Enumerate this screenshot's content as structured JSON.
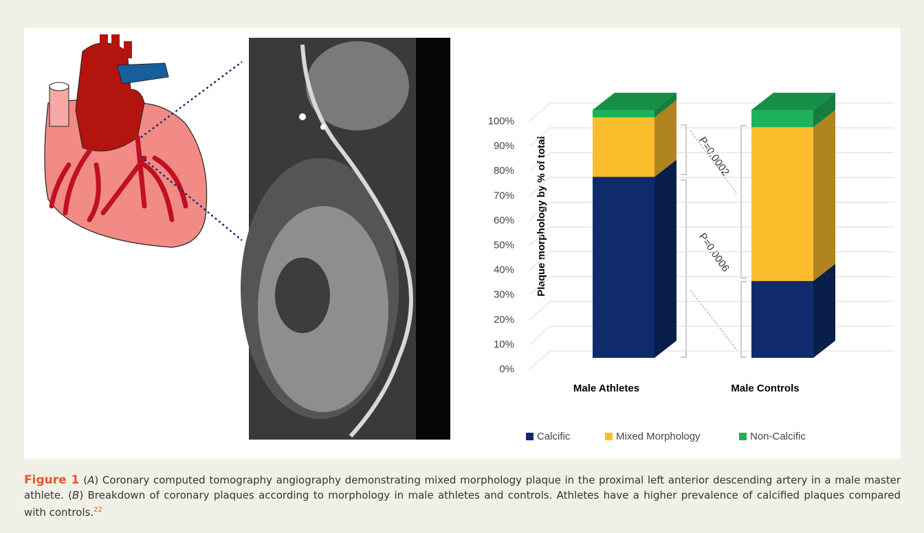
{
  "chart_data": {
    "type": "bar",
    "stacked": true,
    "y_label": "Plaque morphology by % of total",
    "categories": [
      "Male Athletes",
      "Male Controls"
    ],
    "series": [
      {
        "name": "Calcific",
        "color": "#0f2b6b",
        "values": [
          73,
          31
        ]
      },
      {
        "name": "Mixed Morphology",
        "color": "#fbbd2c",
        "values": [
          24,
          62
        ]
      },
      {
        "name": "Non-Calcific",
        "color": "#1cb35b",
        "values": [
          3,
          7
        ]
      }
    ],
    "ylim": [
      0,
      100
    ],
    "yticks": [
      {
        "value": 0,
        "label": "0%"
      },
      {
        "value": 10,
        "label": "10%"
      },
      {
        "value": 20,
        "label": "20%"
      },
      {
        "value": 30,
        "label": "30%"
      },
      {
        "value": 40,
        "label": "40%"
      },
      {
        "value": 50,
        "label": "50%"
      },
      {
        "value": 60,
        "label": "60%"
      },
      {
        "value": 70,
        "label": "70%"
      },
      {
        "value": 80,
        "label": "80%"
      },
      {
        "value": 90,
        "label": "90%"
      },
      {
        "value": 100,
        "label": "100%"
      }
    ],
    "grid": true,
    "legend": "bottom",
    "annotations": [
      "P=0.0002",
      "P=0.0006"
    ]
  },
  "caption": {
    "label": "Figure 1",
    "text": [
      "(",
      "A",
      ") Coronary computed tomography angiography demonstrating mixed morphology plaque in the proximal left anterior descending artery in a male master athlete. (",
      "B",
      ") Breakdown of coronary plaques according to morphology in male athletes and controls. Athletes have a higher prevalence of calcified plaques compared with controls.",
      "22"
    ]
  }
}
